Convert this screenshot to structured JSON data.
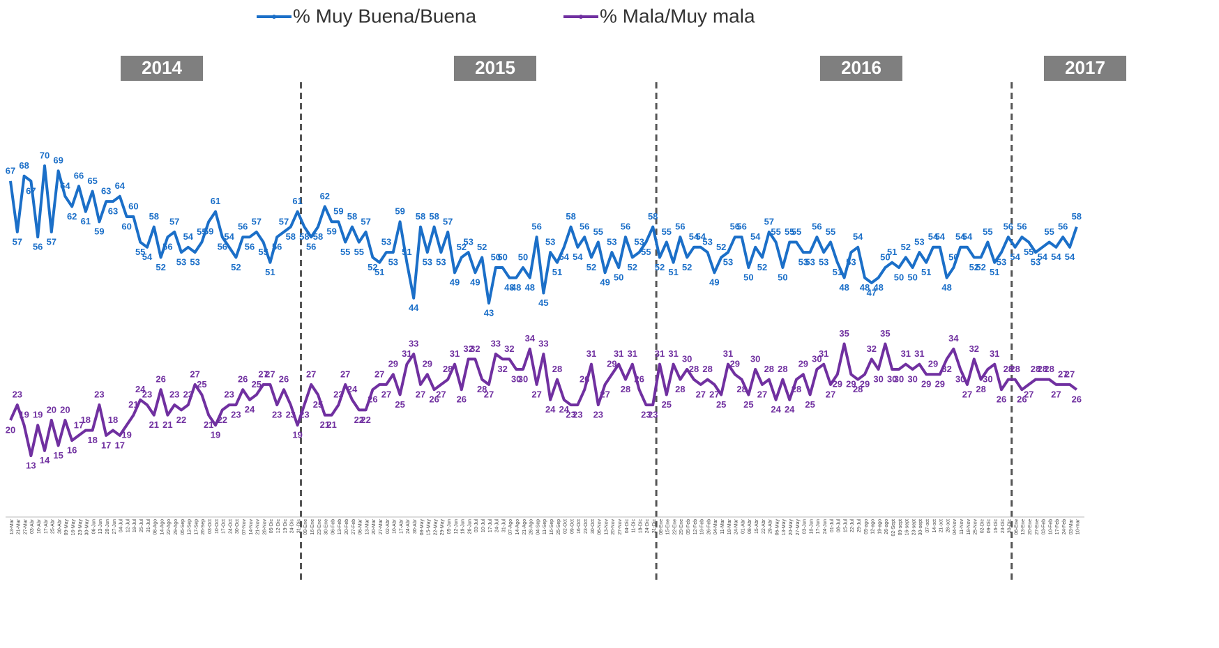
{
  "chart_data": {
    "type": "line",
    "years": [
      "2014",
      "2015",
      "2016",
      "2017"
    ],
    "categories": [
      "13-Mar",
      "21-Mar",
      "27-Mar",
      "03-Abr",
      "10-Abr",
      "17-Abr",
      "25-Abr",
      "30-Abr",
      "09-May",
      "16-May",
      "23-May",
      "30-May",
      "06-Jun",
      "13-Jun",
      "20-Jun",
      "27-Jun",
      "04-Jul",
      "12-Jul",
      "18-Jul",
      "25-Jul",
      "31-Jul",
      "08-Ago",
      "14-Ago",
      "22-Ago",
      "29-Ago",
      "05-Sep",
      "12-Sep",
      "17-Sep",
      "26-Sep",
      "03-Oct",
      "10-Oct",
      "17-Oct",
      "24-Oct",
      "30-Oct",
      "07-Nov",
      "14-Nov",
      "21-Nov",
      "28-Nov",
      "05-Dic",
      "12-Dic",
      "19-Dic",
      "24-Dic",
      "31-Dic",
      "09-Ene",
      "16-Ene",
      "23-Ene",
      "30-Ene",
      "06-Feb",
      "13-Feb",
      "20-Feb",
      "27-Feb",
      "06-Mar",
      "13-Mar",
      "20-Mar",
      "27-Mar",
      "02-Abr",
      "10-Abr",
      "17-Abr",
      "24-Abr",
      "30-Abr",
      "08-May",
      "15-May",
      "22-May",
      "29-May",
      "05-Jun",
      "12-Jun",
      "19-Jun",
      "26-Jun",
      "03-Jul",
      "10-Jul",
      "17-Jul",
      "24-Jul",
      "31-Jul",
      "07-Ago",
      "14-Ago",
      "21-Ago",
      "28-Ago",
      "04-Sep",
      "11-Sep",
      "16-Sep",
      "25-Sep",
      "02-Oct",
      "09-Oct",
      "16-Oct",
      "23-Oct",
      "30-Oct",
      "06-Nov",
      "13-Nov",
      "20-Nov",
      "27-Nov",
      "04-Dic",
      "11-Dic",
      "18-Dic",
      "24-Dic",
      "31-Dic",
      "08-Ene",
      "15-Ene",
      "22-Ene",
      "29-Ene",
      "05-Feb",
      "12-Feb",
      "19-Feb",
      "26-Feb",
      "04-Mar",
      "11-Mar",
      "18-Mar",
      "24-Mar",
      "01-Abr",
      "08-Abr",
      "15-Abr",
      "22-Abr",
      "29-Abr",
      "06-May",
      "13-May",
      "20-May",
      "27-May",
      "03-Jun",
      "10-Jun",
      "17-Jun",
      "24-Jun",
      "01-Jul",
      "08-Jul",
      "15-Jul",
      "22-Jul",
      "29-Jul",
      "05-ago",
      "12-ago",
      "19-ago",
      "26-ago",
      "02-Sept",
      "09-sept",
      "16-sept",
      "23-sept",
      "30-sept",
      "07-oct",
      "14-oct",
      "21-oct",
      "28-oct",
      "04-Nov",
      "11-Nov",
      "18-Nov",
      "25-Nov",
      "02-Dic",
      "09-Dic",
      "16-Dic",
      "23-Dic",
      "30-Dic",
      "06-Ene",
      "13-Ene",
      "20-Ene",
      "27-Ene",
      "03-Feb",
      "10-Feb",
      "17-Feb",
      "24-Feb",
      "03-Mar",
      "10-mar"
    ],
    "series": [
      {
        "name": "% Muy Buena/Buena",
        "color": "#1b6fc8",
        "values": [
          67,
          57,
          68,
          67,
          56,
          70,
          57,
          69,
          64,
          62,
          66,
          61,
          65,
          59,
          63,
          63,
          64,
          60,
          60,
          55,
          54,
          58,
          52,
          56,
          57,
          53,
          54,
          53,
          55,
          59,
          61,
          56,
          54,
          52,
          56,
          56,
          57,
          55,
          51,
          56,
          57,
          58,
          61,
          58,
          56,
          58,
          62,
          59,
          59,
          55,
          58,
          55,
          57,
          52,
          51,
          53,
          53,
          59,
          51,
          44,
          58,
          53,
          58,
          53,
          57,
          49,
          52,
          53,
          49,
          52,
          43,
          50,
          50,
          48,
          48,
          50,
          48,
          56,
          45,
          53,
          51,
          54,
          58,
          54,
          56,
          52,
          55,
          49,
          53,
          50,
          56,
          52,
          53,
          55,
          58,
          52,
          55,
          51,
          56,
          52,
          54,
          54,
          53,
          49,
          52,
          53,
          56,
          56,
          50,
          54,
          52,
          57,
          55,
          50,
          55,
          55,
          53,
          53,
          56,
          53,
          55,
          51,
          48,
          53,
          54,
          48,
          47,
          48,
          50,
          51,
          50,
          52,
          50,
          53,
          51,
          54,
          54,
          48,
          50,
          54,
          54,
          52,
          52,
          55,
          51,
          53,
          56,
          54,
          56,
          55,
          53,
          54,
          55,
          54,
          56,
          54,
          58
        ]
      },
      {
        "name": "% Mala/Muy mala",
        "color": "#7030a0",
        "values": [
          20,
          23,
          19,
          13,
          19,
          14,
          20,
          15,
          20,
          16,
          17,
          18,
          18,
          23,
          17,
          18,
          17,
          19,
          21,
          24,
          23,
          21,
          26,
          21,
          23,
          22,
          23,
          27,
          25,
          21,
          19,
          22,
          23,
          23,
          26,
          24,
          25,
          27,
          27,
          23,
          26,
          23,
          19,
          23,
          27,
          25,
          21,
          21,
          23,
          27,
          24,
          22,
          22,
          26,
          27,
          27,
          29,
          25,
          31,
          33,
          27,
          29,
          26,
          27,
          28,
          31,
          26,
          32,
          32,
          28,
          27,
          33,
          32,
          32,
          30,
          30,
          34,
          27,
          33,
          24,
          28,
          24,
          23,
          23,
          26,
          31,
          23,
          27,
          29,
          31,
          28,
          31,
          26,
          23,
          23,
          31,
          25,
          31,
          28,
          30,
          28,
          27,
          28,
          27,
          25,
          31,
          29,
          28,
          25,
          30,
          27,
          28,
          24,
          28,
          24,
          28,
          29,
          25,
          30,
          31,
          27,
          29,
          35,
          29,
          28,
          29,
          32,
          30,
          35,
          30,
          30,
          31,
          30,
          31,
          29,
          29,
          29,
          32,
          34,
          30,
          27,
          32,
          28,
          30,
          31,
          26,
          28,
          28,
          26,
          27,
          28,
          28,
          28,
          27,
          27,
          27,
          26
        ]
      }
    ],
    "ylim": [
      10,
      80
    ]
  }
}
